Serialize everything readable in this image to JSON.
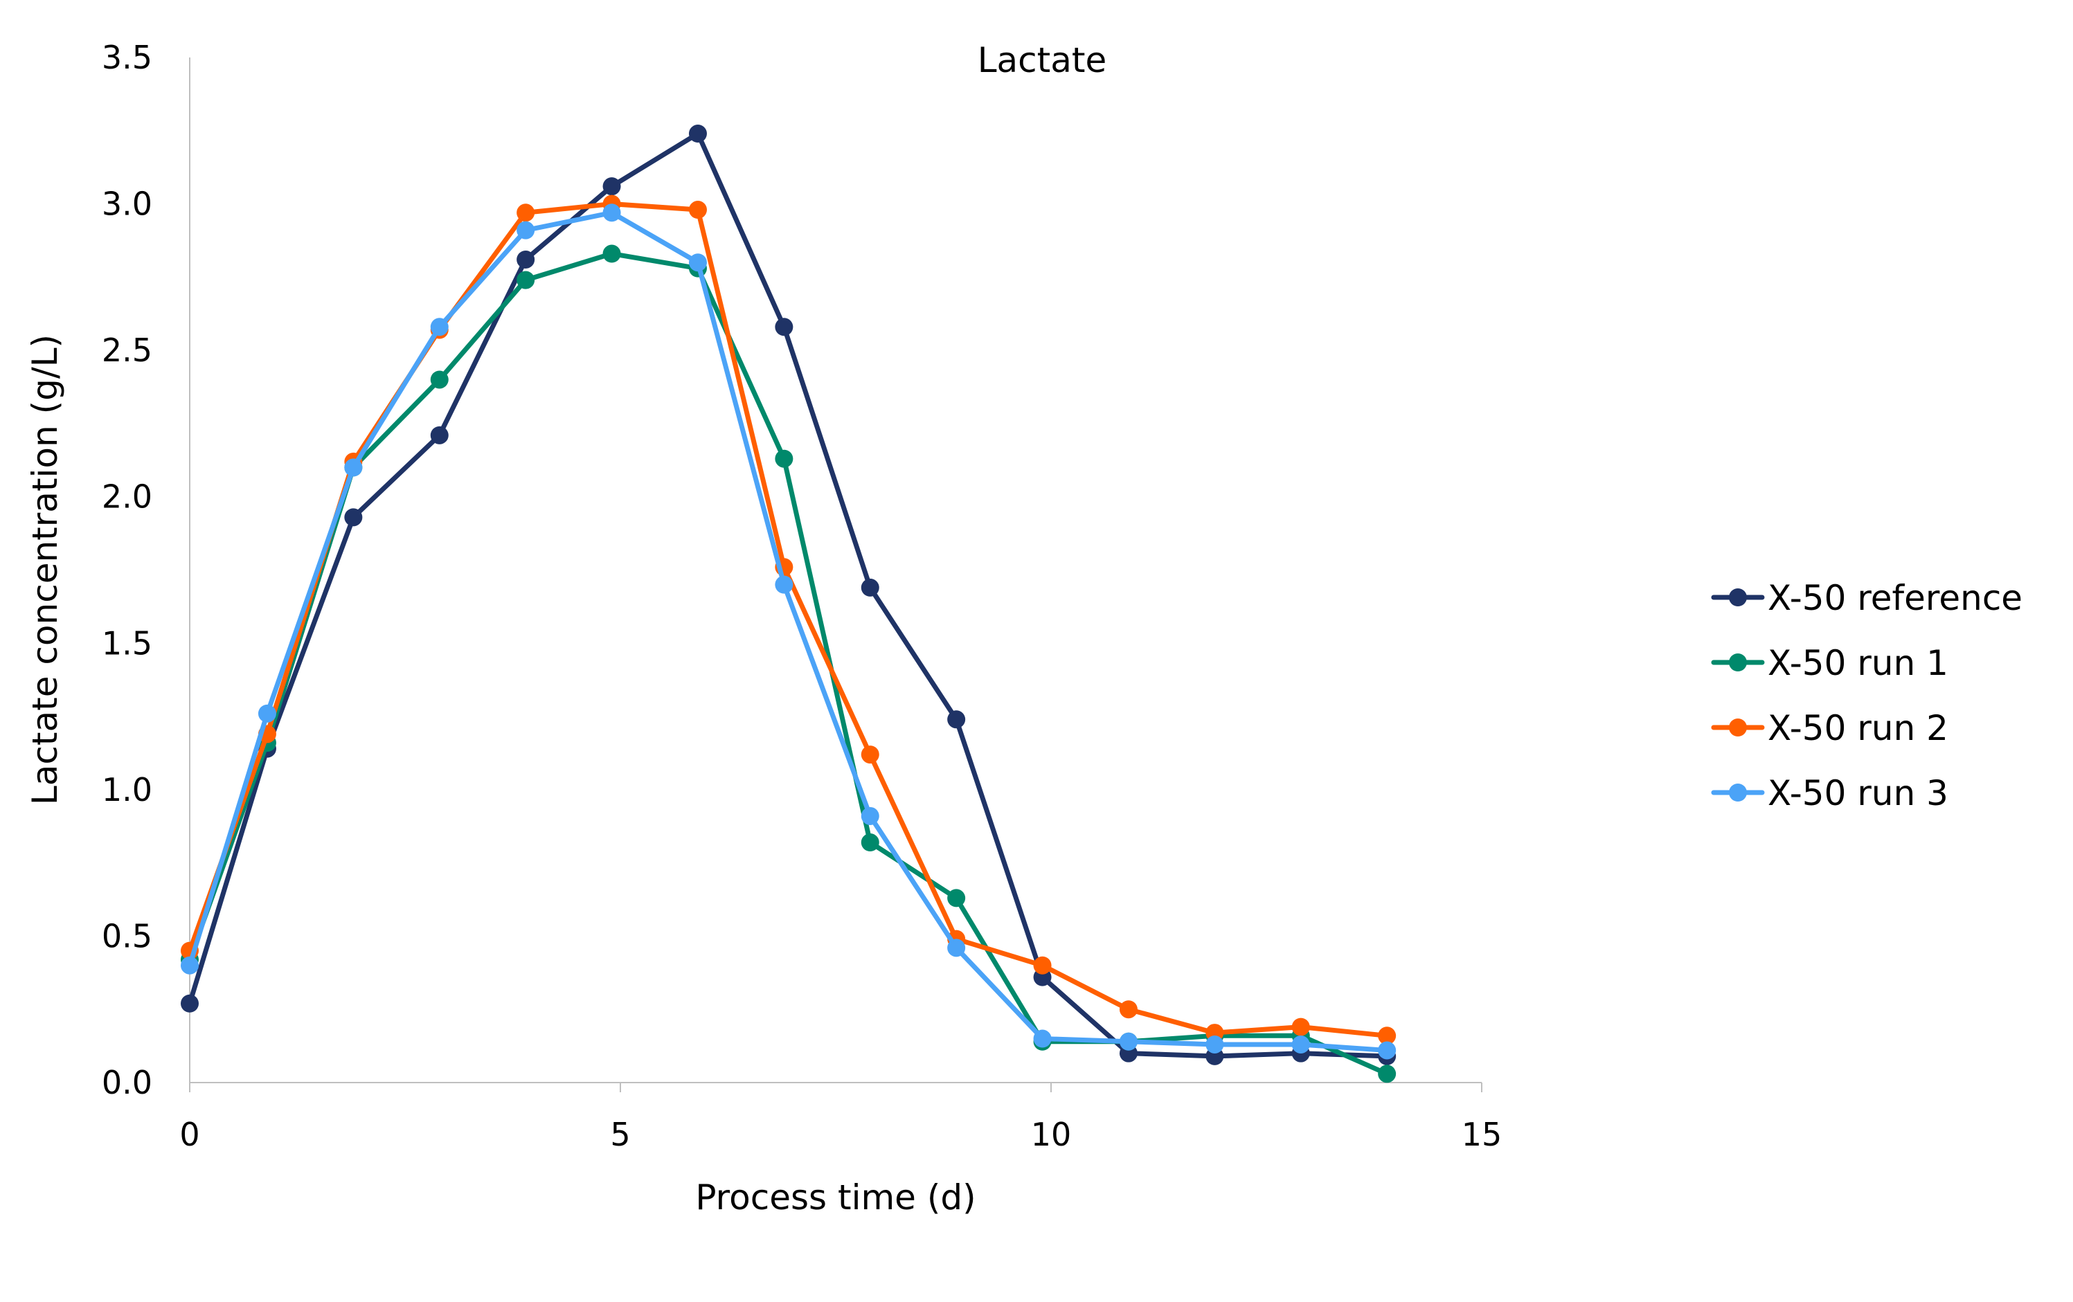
{
  "chart_data": {
    "type": "line",
    "title": "Lactate",
    "xlabel": "Process time (d)",
    "ylabel": "Lactate concentration (g/L)",
    "xlim": [
      0,
      15
    ],
    "ylim": [
      0,
      3.5
    ],
    "xticks": [
      0,
      5,
      10,
      15
    ],
    "yticks": [
      "0.0",
      "0.5",
      "1.0",
      "1.5",
      "2.0",
      "2.5",
      "3.0",
      "3.5"
    ],
    "grid": false,
    "legend_position": "right",
    "x": [
      0,
      0.9,
      1.9,
      2.9,
      3.9,
      4.9,
      5.9,
      6.9,
      7.9,
      8.9,
      9.9,
      10.9,
      11.9,
      12.9,
      13.9
    ],
    "series": [
      {
        "name": "X-50 reference",
        "color": "#1f3366",
        "values": [
          0.27,
          1.14,
          1.93,
          2.21,
          2.81,
          3.06,
          3.24,
          2.58,
          1.69,
          1.24,
          0.36,
          0.1,
          0.09,
          0.1,
          0.09
        ]
      },
      {
        "name": "X-50 run 1",
        "color": "#00896b",
        "values": [
          0.42,
          1.16,
          2.1,
          2.4,
          2.74,
          2.83,
          2.78,
          2.13,
          0.82,
          0.63,
          0.14,
          0.14,
          0.16,
          0.16,
          0.03
        ]
      },
      {
        "name": "X-50 run 2",
        "color": "#ff5f00",
        "values": [
          0.45,
          1.19,
          2.12,
          2.57,
          2.97,
          3.0,
          2.98,
          1.76,
          1.12,
          0.49,
          0.4,
          0.25,
          0.17,
          0.19,
          0.16
        ]
      },
      {
        "name": "X-50 run 3",
        "color": "#4ba3f7",
        "values": [
          0.4,
          1.26,
          2.1,
          2.58,
          2.91,
          2.97,
          2.8,
          1.7,
          0.91,
          0.46,
          0.15,
          0.14,
          0.13,
          0.13,
          0.11
        ]
      }
    ]
  }
}
